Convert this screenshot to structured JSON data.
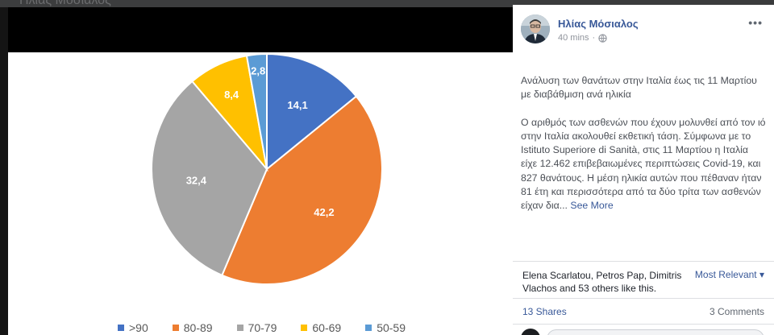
{
  "viewer": {
    "ghost_title": "Ηλίας Μόσιαλος"
  },
  "chart_data": {
    "type": "pie",
    "title": "",
    "categories": [
      ">90",
      "80-89",
      "70-79",
      "60-69",
      "50-59"
    ],
    "values": [
      14.1,
      42.2,
      32.4,
      8.4,
      2.8
    ],
    "labels": [
      "14,1",
      "42,2",
      "32,4",
      "8,4",
      "2,8"
    ],
    "colors": [
      "#4472c4",
      "#ed7d31",
      "#a5a5a5",
      "#ffc000",
      "#5b9bd5"
    ],
    "legend_position": "bottom",
    "start": "top, clockwise"
  },
  "post": {
    "author": "Ηλίας Μόσιαλος",
    "time": "40 mins",
    "separator": "·",
    "audience_icon": "globe-icon",
    "more_icon": "•••",
    "paragraph_1": "Ανάλυση των θανάτων στην Ιταλία έως τις 11 Μαρτίου με διαβάθμιση ανά ηλικία",
    "paragraph_2": "Ο αριθμός των ασθενών που έχουν μολυνθεί από τον ιό στην Ιταλία ακολουθεί εκθετική τάση. Σύμφωνα με το Istituto Superiore di Sanità, στις 11 Μαρτίου η Ιταλία είχε 12.462 επιβεβαιωμένες περιπτώσεις Covid-19, και 827 θανάτους. Η μέση ηλικία αυτών που πέθαναν ήταν 81 έτη και περισσότερα από τα δύο τρίτα των ασθενών είχαν δια...",
    "see_more": "See More"
  },
  "reactions": {
    "likes_text": "Elena Scarlatou, Petros Pap, Dimitris Vlachos and 53 others like this.",
    "sort_label": "Most Relevant",
    "sort_caret": "▾",
    "shares": "13 Shares",
    "comments": "3 Comments"
  }
}
